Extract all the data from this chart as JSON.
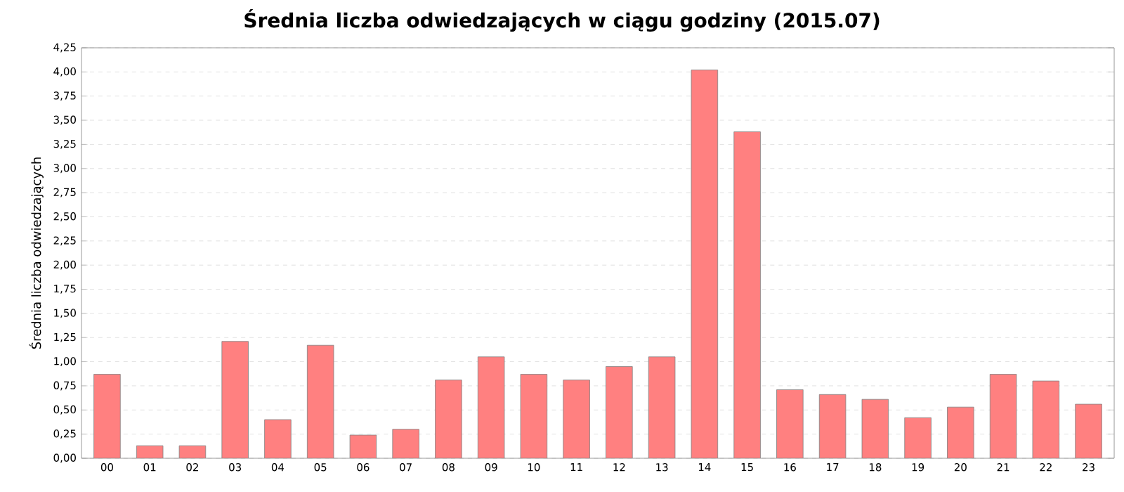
{
  "chart_data": {
    "type": "bar",
    "title": "Średnia liczba odwiedzających w ciągu godziny (2015.07)",
    "ylabel": "Średnia liczba odwiedzających",
    "categories": [
      "00",
      "01",
      "02",
      "03",
      "04",
      "05",
      "06",
      "07",
      "08",
      "09",
      "10",
      "11",
      "12",
      "13",
      "14",
      "15",
      "16",
      "17",
      "18",
      "19",
      "20",
      "21",
      "22",
      "23"
    ],
    "values": [
      0.87,
      0.13,
      0.13,
      1.21,
      0.4,
      1.17,
      0.24,
      0.3,
      0.81,
      1.05,
      0.87,
      0.81,
      0.95,
      1.05,
      4.02,
      3.38,
      0.71,
      0.66,
      0.61,
      0.42,
      0.53,
      0.87,
      0.8,
      0.56
    ],
    "color": "#ff8080",
    "ylim": [
      0,
      4.25
    ],
    "yticks": [
      {
        "value": 0,
        "label": "0,00"
      },
      {
        "value": 0.25,
        "label": "0,25"
      },
      {
        "value": 0.5,
        "label": "0,50"
      },
      {
        "value": 0.75,
        "label": "0,75"
      },
      {
        "value": 1,
        "label": "1,00"
      },
      {
        "value": 1.25,
        "label": "1,25"
      },
      {
        "value": 1.5,
        "label": "1,50"
      },
      {
        "value": 1.75,
        "label": "1,75"
      },
      {
        "value": 2,
        "label": "2,00"
      },
      {
        "value": 2.25,
        "label": "2,25"
      },
      {
        "value": 2.5,
        "label": "2,50"
      },
      {
        "value": 2.75,
        "label": "2,75"
      },
      {
        "value": 3,
        "label": "3,00"
      },
      {
        "value": 3.25,
        "label": "3,25"
      },
      {
        "value": 3.5,
        "label": "3,50"
      },
      {
        "value": 3.75,
        "label": "3,75"
      },
      {
        "value": 4,
        "label": "4,00"
      },
      {
        "value": 4.25,
        "label": "4,25"
      }
    ],
    "grid": "y"
  }
}
